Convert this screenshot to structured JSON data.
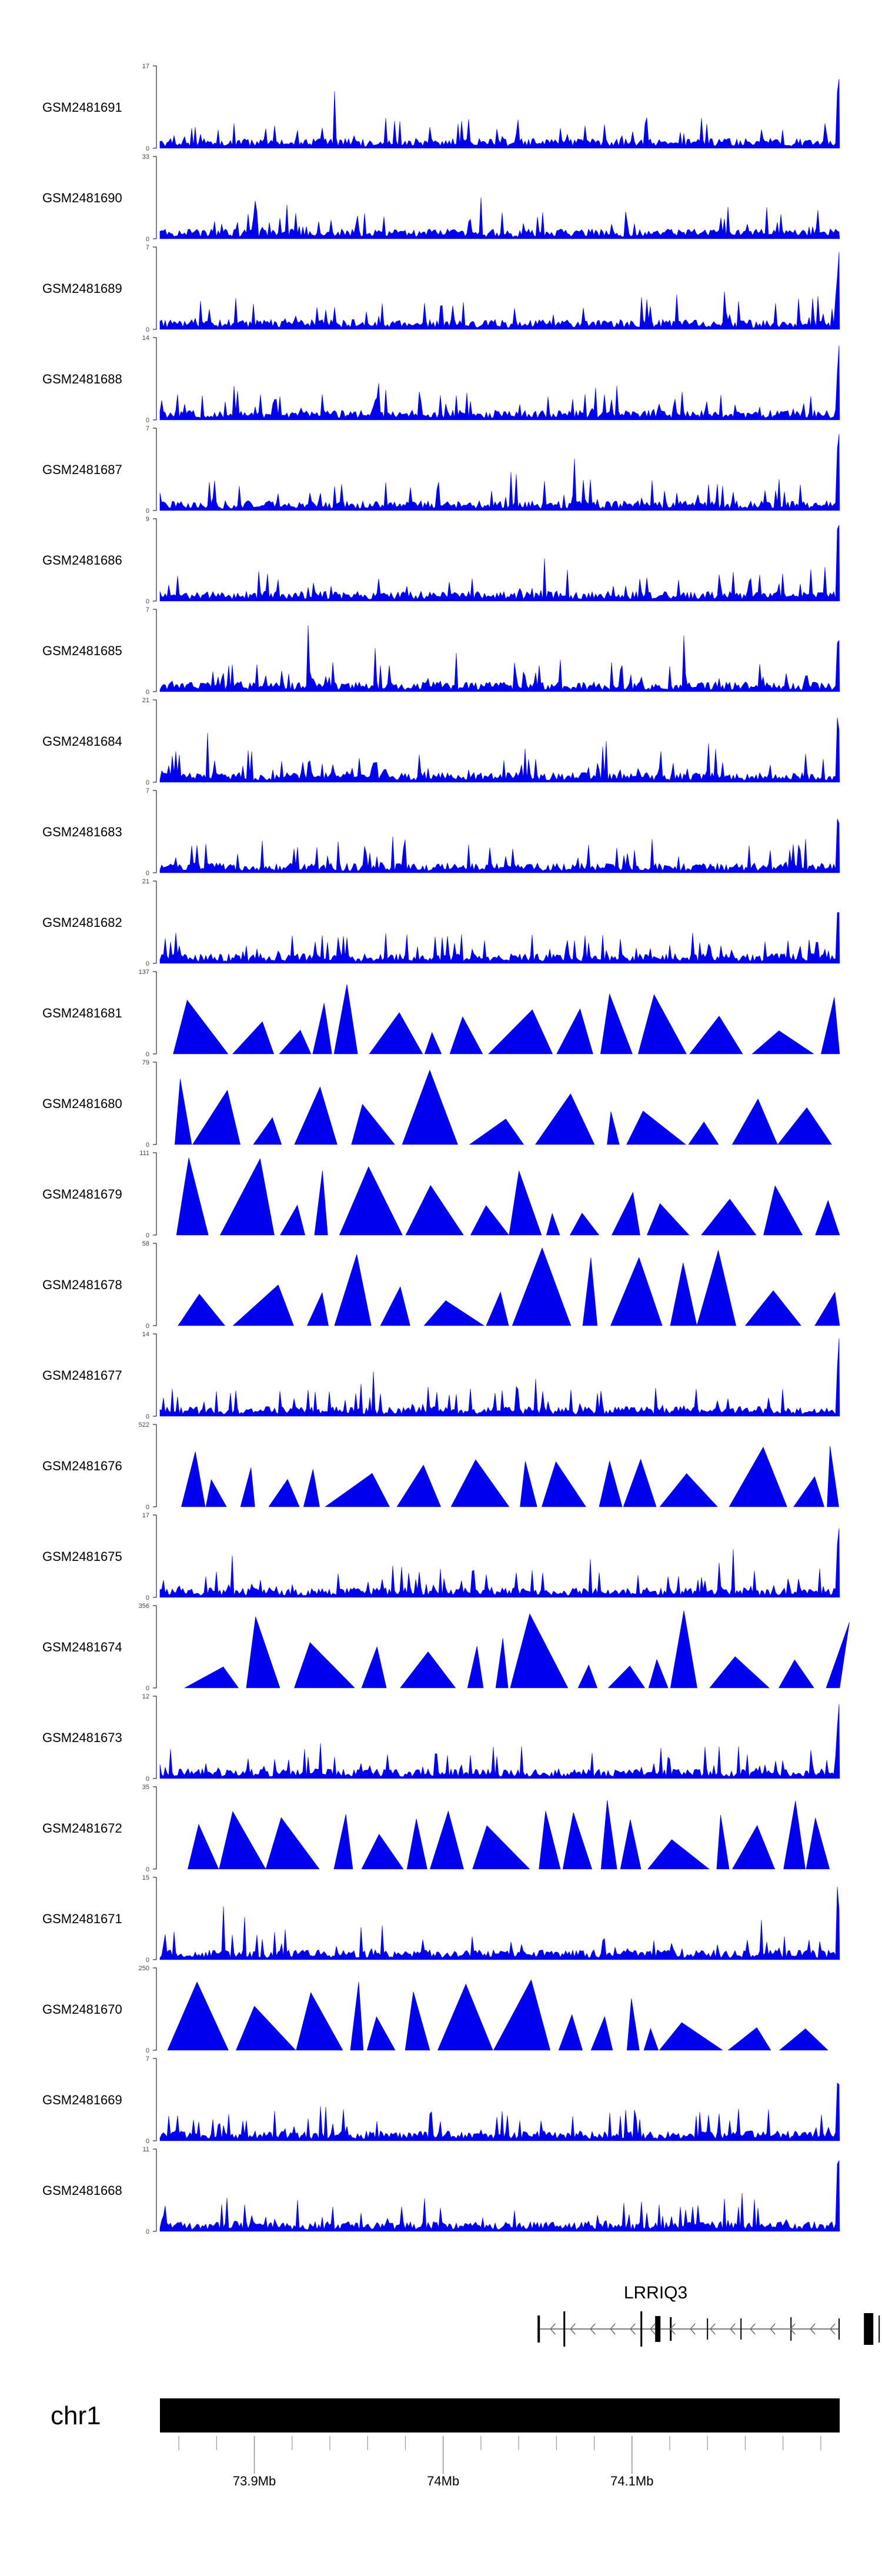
{
  "chart_data": {
    "type": "area",
    "colors": {
      "signal": "#0000ee",
      "axis": "#000000",
      "ideogram": "#000000"
    },
    "x_axis": {
      "unit": "Mb",
      "range_mb": [
        73.85,
        74.21
      ],
      "tick_labels": [
        "73.9Mb",
        "74Mb",
        "74.1Mb"
      ],
      "tick_values": [
        73.9,
        74.0,
        74.1
      ]
    },
    "tracks": [
      {
        "name": "GSM2481691",
        "ymax": "17",
        "ymin": "0",
        "style": "dense"
      },
      {
        "name": "GSM2481690",
        "ymax": "33",
        "ymin": "0",
        "style": "dense"
      },
      {
        "name": "GSM2481689",
        "ymax": "7",
        "ymin": "0",
        "style": "dense"
      },
      {
        "name": "GSM2481688",
        "ymax": "14",
        "ymin": "0",
        "style": "dense"
      },
      {
        "name": "GSM2481687",
        "ymax": "7",
        "ymin": "0",
        "style": "dense"
      },
      {
        "name": "GSM2481686",
        "ymax": "9",
        "ymin": "0",
        "style": "dense"
      },
      {
        "name": "GSM2481685",
        "ymax": "7",
        "ymin": "0",
        "style": "dense"
      },
      {
        "name": "GSM2481684",
        "ymax": "21",
        "ymin": "0",
        "style": "dense"
      },
      {
        "name": "GSM2481683",
        "ymax": "7",
        "ymin": "0",
        "style": "dense"
      },
      {
        "name": "GSM2481682",
        "ymax": "21",
        "ymin": "0",
        "style": "dense"
      },
      {
        "name": "GSM2481681",
        "ymax": "137",
        "ymin": "0",
        "style": "sparse"
      },
      {
        "name": "GSM2481680",
        "ymax": "79",
        "ymin": "0",
        "style": "sparse"
      },
      {
        "name": "GSM2481679",
        "ymax": "111",
        "ymin": "0",
        "style": "sparse"
      },
      {
        "name": "GSM2481678",
        "ymax": "58",
        "ymin": "0",
        "style": "sparse"
      },
      {
        "name": "GSM2481677",
        "ymax": "14",
        "ymin": "0",
        "style": "dense"
      },
      {
        "name": "GSM2481676",
        "ymax": "522",
        "ymin": "0",
        "style": "sparse"
      },
      {
        "name": "GSM2481675",
        "ymax": "17",
        "ymin": "0",
        "style": "dense"
      },
      {
        "name": "GSM2481674",
        "ymax": "356",
        "ymin": "0",
        "style": "sparse"
      },
      {
        "name": "GSM2481673",
        "ymax": "12",
        "ymin": "0",
        "style": "dense"
      },
      {
        "name": "GSM2481672",
        "ymax": "35",
        "ymin": "0",
        "style": "sparse"
      },
      {
        "name": "GSM2481671",
        "ymax": "15",
        "ymin": "0",
        "style": "dense"
      },
      {
        "name": "GSM2481670",
        "ymax": "250",
        "ymin": "0",
        "style": "sparse"
      },
      {
        "name": "GSM2481669",
        "ymax": "7",
        "ymin": "0",
        "style": "dense"
      },
      {
        "name": "GSM2481668",
        "ymax": "11",
        "ymin": "0",
        "style": "dense"
      }
    ],
    "gene": {
      "name": "LRRIQ3",
      "strand": "-"
    },
    "chromosome": "chr1"
  }
}
